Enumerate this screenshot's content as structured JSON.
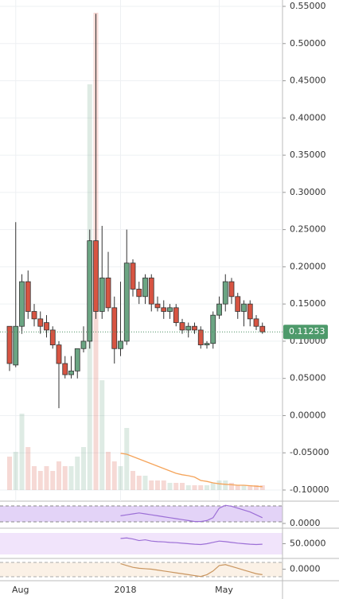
{
  "chart_data": {
    "type": "candlestick",
    "categories": [
      null,
      "Aug",
      null,
      null,
      null,
      null,
      null,
      null,
      null,
      null,
      null,
      null,
      null,
      null,
      null,
      null,
      null,
      null,
      "2018",
      null,
      null,
      null,
      null,
      null,
      null,
      null,
      null,
      null,
      null,
      null,
      null,
      null,
      null,
      null,
      "May",
      null,
      null,
      null,
      null,
      null,
      null,
      null
    ],
    "open": [
      0.12,
      0.068,
      0.12,
      0.18,
      0.14,
      0.13,
      0.125,
      0.115,
      0.095,
      0.07,
      0.055,
      0.06,
      0.09,
      0.1,
      0.235,
      0.14,
      0.185,
      0.145,
      0.09,
      0.1,
      0.205,
      0.17,
      0.16,
      0.185,
      0.15,
      0.145,
      0.14,
      0.145,
      0.125,
      0.115,
      0.12,
      0.115,
      0.095,
      0.097,
      0.135,
      0.15,
      0.18,
      0.16,
      0.14,
      0.15,
      0.13,
      0.12
    ],
    "high": [
      0.12,
      0.26,
      0.19,
      0.195,
      0.15,
      0.14,
      0.135,
      0.12,
      0.1,
      0.08,
      0.08,
      0.09,
      0.12,
      0.25,
      0.54,
      0.255,
      0.22,
      0.16,
      0.18,
      0.25,
      0.21,
      0.18,
      0.19,
      0.19,
      0.16,
      0.155,
      0.15,
      0.15,
      0.13,
      0.125,
      0.125,
      0.12,
      0.1,
      0.14,
      0.16,
      0.19,
      0.185,
      0.165,
      0.155,
      0.155,
      0.135,
      0.125
    ],
    "low": [
      0.06,
      0.065,
      0.11,
      0.13,
      0.12,
      0.11,
      0.105,
      0.09,
      0.01,
      0.05,
      0.05,
      0.05,
      0.085,
      0.09,
      0.13,
      0.13,
      0.14,
      0.07,
      0.08,
      0.095,
      0.16,
      0.15,
      0.15,
      0.14,
      0.14,
      0.13,
      0.13,
      0.12,
      0.11,
      0.105,
      0.11,
      0.09,
      0.09,
      0.09,
      0.13,
      0.14,
      0.15,
      0.13,
      0.12,
      0.12,
      0.115,
      0.11
    ],
    "close": [
      0.07,
      0.12,
      0.18,
      0.14,
      0.13,
      0.12,
      0.115,
      0.095,
      0.07,
      0.055,
      0.06,
      0.09,
      0.1,
      0.235,
      0.14,
      0.185,
      0.145,
      0.09,
      0.1,
      0.205,
      0.17,
      0.16,
      0.185,
      0.15,
      0.145,
      0.14,
      0.145,
      0.125,
      0.115,
      0.12,
      0.115,
      0.095,
      0.097,
      0.135,
      0.15,
      0.18,
      0.16,
      0.14,
      0.15,
      0.13,
      0.12,
      0.1125
    ],
    "up_color": "#6ba583",
    "down_color": "#d75442",
    "ylim": [
      -0.1,
      0.55
    ],
    "yticks": [
      {
        "value": 0.55,
        "label": "0.55000"
      },
      {
        "value": 0.5,
        "label": "0.50000"
      },
      {
        "value": 0.45,
        "label": "0.45000"
      },
      {
        "value": 0.4,
        "label": "0.40000"
      },
      {
        "value": 0.35,
        "label": "0.35000"
      },
      {
        "value": 0.3,
        "label": "0.30000"
      },
      {
        "value": 0.25,
        "label": "0.25000"
      },
      {
        "value": 0.2,
        "label": "0.20000"
      },
      {
        "value": 0.15,
        "label": "0.15000"
      },
      {
        "value": 0.1,
        "label": "0.10000"
      },
      {
        "value": 0.05,
        "label": "0.05000"
      },
      {
        "value": 0,
        "label": "0.00000"
      },
      {
        "value": -0.05,
        "label": "-0.05000"
      },
      {
        "value": -0.1,
        "label": "-0.10000"
      }
    ],
    "grid": true,
    "last_price": 0.11253,
    "volume": [
      7,
      8,
      16,
      9,
      5,
      4,
      5,
      4,
      6,
      5,
      5,
      7,
      9,
      85,
      100,
      23,
      8,
      6,
      5,
      13,
      4,
      3,
      3,
      2,
      2,
      2,
      1.5,
      1.5,
      1.5,
      1,
      1,
      1,
      1,
      1.5,
      2,
      2,
      1.5,
      1,
      1,
      1,
      1,
      1
    ],
    "volume_lim": [
      0,
      100
    ],
    "volume_ma": {
      "color": "#f5a45a",
      "values": [
        null,
        null,
        null,
        null,
        null,
        null,
        null,
        null,
        null,
        null,
        null,
        null,
        null,
        null,
        null,
        null,
        null,
        null,
        7.7,
        7.5,
        7,
        6.5,
        6,
        5.5,
        5,
        4.5,
        4,
        3.5,
        3.2,
        3,
        2.7,
        2,
        1.8,
        1.5,
        1.3,
        1.2,
        1.1,
        1,
        1,
        0.9,
        0.8,
        0.7
      ]
    },
    "indicators": [
      {
        "color": "#9c6fd6",
        "ylim": [
          0,
          100
        ],
        "yticks": [
          {
            "value": 0,
            "label": "0.0000"
          }
        ],
        "values": [
          null,
          null,
          null,
          null,
          null,
          null,
          null,
          null,
          null,
          null,
          null,
          null,
          null,
          null,
          null,
          null,
          null,
          null,
          40,
          45,
          50,
          55,
          50,
          45,
          40,
          35,
          30,
          25,
          20,
          15,
          10,
          10,
          15,
          30,
          80,
          95,
          90,
          80,
          70,
          60,
          45,
          30
        ]
      },
      {
        "color": "#9c6fd6",
        "ylim": [
          0,
          100
        ],
        "yticks": [
          {
            "value": 50,
            "label": "50.0000"
          }
        ],
        "values": [
          null,
          null,
          null,
          null,
          null,
          null,
          null,
          null,
          null,
          null,
          null,
          null,
          null,
          null,
          null,
          null,
          null,
          null,
          70,
          72,
          68,
          62,
          65,
          60,
          58,
          57,
          55,
          54,
          52,
          50,
          48,
          47,
          50,
          55,
          60,
          58,
          55,
          52,
          50,
          48,
          47,
          48
        ]
      },
      {
        "color": "#c9955f",
        "ylim": [
          -100,
          100
        ],
        "yticks": [
          {
            "value": 0,
            "label": "0.0000"
          }
        ],
        "values": [
          null,
          null,
          null,
          null,
          null,
          null,
          null,
          null,
          null,
          null,
          null,
          null,
          null,
          null,
          null,
          null,
          null,
          null,
          60,
          40,
          20,
          10,
          5,
          0,
          -10,
          -20,
          -30,
          -40,
          -50,
          -60,
          -70,
          -80,
          -60,
          -20,
          40,
          50,
          30,
          10,
          -10,
          -30,
          -50,
          -60
        ]
      }
    ]
  }
}
